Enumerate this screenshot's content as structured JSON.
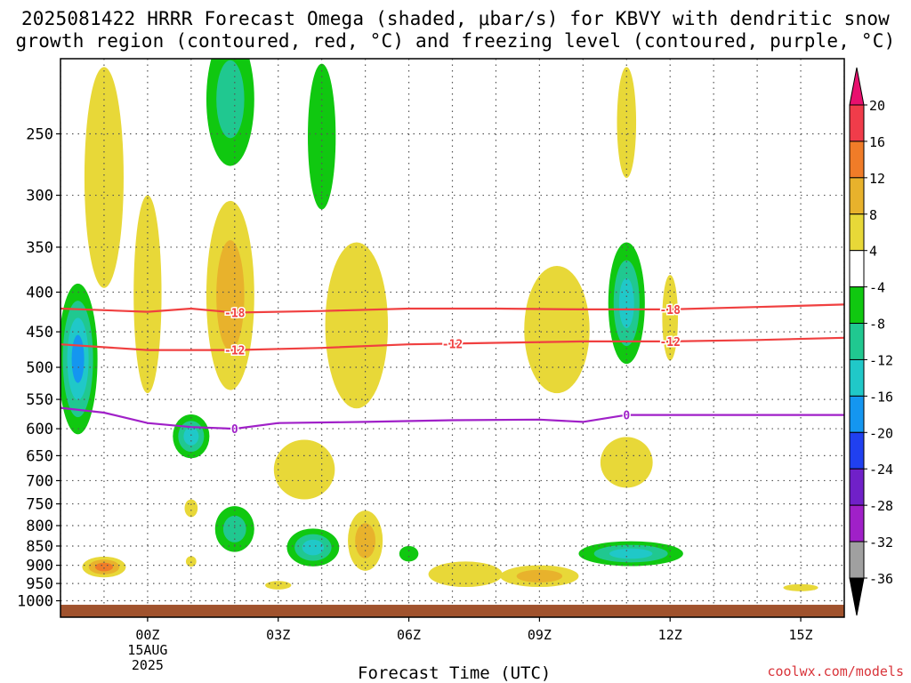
{
  "title_line1": "2025081422 HRRR Forecast Omega (shaded, μbar/s) for KBVY with dendritic snow",
  "title_line2": "growth region (contoured, red, °C) and freezing level (contoured, purple, °C)",
  "credit": "coolwx.com/models",
  "chart_data": {
    "type": "contour-time-height",
    "xlabel": "Forecast Time (UTC)",
    "ylabel": "",
    "x_range_hours": [
      -2.0,
      16.0
    ],
    "y_range_hpa": [
      200,
      1050
    ],
    "y_scale": "log-pressure",
    "grid": true,
    "x_ticks": [
      {
        "hour": 0,
        "label": "00Z",
        "sub1": "15AUG",
        "sub2": "2025"
      },
      {
        "hour": 3,
        "label": "03Z"
      },
      {
        "hour": 6,
        "label": "06Z"
      },
      {
        "hour": 9,
        "label": "09Z"
      },
      {
        "hour": 12,
        "label": "12Z"
      },
      {
        "hour": 15,
        "label": "15Z"
      }
    ],
    "y_ticks": [
      250,
      300,
      350,
      400,
      450,
      500,
      550,
      600,
      650,
      700,
      750,
      800,
      850,
      900,
      950,
      1000
    ],
    "colorbar": {
      "labels": [
        "20",
        "16",
        "12",
        "8",
        "4",
        "-4",
        "-8",
        "-12",
        "-16",
        "-20",
        "-24",
        "-28",
        "-32",
        "-36"
      ],
      "colors": [
        "#f03c4a",
        "#f07c28",
        "#e8b22c",
        "#e8d838",
        "#ffffff",
        "#10c810",
        "#20c890",
        "#20c8c8",
        "#1496f0",
        "#2040f0",
        "#7020c8",
        "#a020c8",
        "#a0a0a0"
      ],
      "top_arrow_color": "#e8106e",
      "bottom_arrow_color": "#000000"
    },
    "shaded_regions": [
      {
        "center": [
          -1.6,
          500
        ],
        "half": [
          0.45,
          110
        ],
        "levels": [
          "#10c810",
          "#20c890",
          "#20c8c8",
          "#1496f0"
        ]
      },
      {
        "center": [
          -1.0,
          300
        ],
        "half": [
          0.45,
          95
        ],
        "levels": [
          "#e8d838"
        ]
      },
      {
        "center": [
          0.0,
          420
        ],
        "half": [
          0.32,
          120
        ],
        "levels": [
          "#e8d838"
        ]
      },
      {
        "center": [
          -1.0,
          905
        ],
        "half": [
          0.5,
          28
        ],
        "levels": [
          "#e8d838",
          "#e8b22c",
          "#f07c28"
        ]
      },
      {
        "center": [
          1.0,
          615
        ],
        "half": [
          0.42,
          40
        ],
        "levels": [
          "#10c810",
          "#20c890",
          "#20c8c8"
        ]
      },
      {
        "center": [
          1.0,
          760
        ],
        "half": [
          0.15,
          20
        ],
        "levels": [
          "#e8d838"
        ]
      },
      {
        "center": [
          1.0,
          890
        ],
        "half": [
          0.12,
          14
        ],
        "levels": [
          "#e8d838"
        ]
      },
      {
        "center": [
          1.9,
          230
        ],
        "half": [
          0.55,
          45
        ],
        "levels": [
          "#10c810",
          "#20c890"
        ]
      },
      {
        "center": [
          1.9,
          420
        ],
        "half": [
          0.55,
          115
        ],
        "levels": [
          "#e8d838",
          "#e8b22c"
        ]
      },
      {
        "center": [
          2.0,
          810
        ],
        "half": [
          0.45,
          55
        ],
        "levels": [
          "#10c810",
          "#20c890"
        ]
      },
      {
        "center": [
          4.0,
          258
        ],
        "half": [
          0.32,
          55
        ],
        "levels": [
          "#10c810"
        ]
      },
      {
        "center": [
          3.6,
          680
        ],
        "half": [
          0.7,
          60
        ],
        "levels": [
          "#e8d838"
        ]
      },
      {
        "center": [
          3.0,
          955
        ],
        "half": [
          0.3,
          12
        ],
        "levels": [
          "#e8d838"
        ]
      },
      {
        "center": [
          3.8,
          855
        ],
        "half": [
          0.6,
          48
        ],
        "levels": [
          "#10c810",
          "#20c890",
          "#20c8c8"
        ]
      },
      {
        "center": [
          4.8,
          455
        ],
        "half": [
          0.72,
          110
        ],
        "levels": [
          "#e8d838"
        ]
      },
      {
        "center": [
          5.0,
          840
        ],
        "half": [
          0.4,
          75
        ],
        "levels": [
          "#e8d838",
          "#e8b22c"
        ]
      },
      {
        "center": [
          6.0,
          870
        ],
        "half": [
          0.22,
          20
        ],
        "levels": [
          "#10c810"
        ]
      },
      {
        "center": [
          7.3,
          925
        ],
        "half": [
          0.85,
          35
        ],
        "levels": [
          "#e8d838"
        ]
      },
      {
        "center": [
          9.4,
          455
        ],
        "half": [
          0.75,
          85
        ],
        "levels": [
          "#e8d838"
        ]
      },
      {
        "center": [
          9.0,
          930
        ],
        "half": [
          0.9,
          30
        ],
        "levels": [
          "#e8d838",
          "#e8b22c"
        ]
      },
      {
        "center": [
          11.0,
          245
        ],
        "half": [
          0.22,
          40
        ],
        "levels": [
          "#e8d838"
        ]
      },
      {
        "center": [
          11.0,
          420
        ],
        "half": [
          0.42,
          75
        ],
        "levels": [
          "#10c810",
          "#20c890",
          "#20c8c8"
        ]
      },
      {
        "center": [
          11.0,
          665
        ],
        "half": [
          0.6,
          50
        ],
        "levels": [
          "#e8d838"
        ]
      },
      {
        "center": [
          11.1,
          870
        ],
        "half": [
          1.2,
          32
        ],
        "levels": [
          "#10c810",
          "#20c890",
          "#20c8c8"
        ]
      },
      {
        "center": [
          12.0,
          435
        ],
        "half": [
          0.18,
          55
        ],
        "levels": [
          "#e8d838"
        ]
      },
      {
        "center": [
          15.0,
          962
        ],
        "half": [
          0.4,
          8
        ],
        "levels": [
          "#e8d838"
        ]
      }
    ],
    "contours": [
      {
        "name": "dgz-minus18",
        "label": "-18",
        "color": "#f04040",
        "points": [
          [
            -2.0,
            420
          ],
          [
            0.0,
            424
          ],
          [
            1.0,
            420
          ],
          [
            2.0,
            425
          ],
          [
            4.0,
            423
          ],
          [
            6.0,
            420
          ],
          [
            8.0,
            420
          ],
          [
            10.0,
            421
          ],
          [
            12.0,
            421
          ],
          [
            14.0,
            418
          ],
          [
            16.0,
            415
          ]
        ],
        "label_hours": [
          2.0,
          12.0
        ]
      },
      {
        "name": "dgz-minus12",
        "label": "-12",
        "color": "#f04040",
        "points": [
          [
            -2.0,
            467
          ],
          [
            0.0,
            475
          ],
          [
            2.0,
            475
          ],
          [
            4.0,
            472
          ],
          [
            6.0,
            467
          ],
          [
            8.0,
            465
          ],
          [
            10.0,
            463
          ],
          [
            12.0,
            463
          ],
          [
            14.0,
            461
          ],
          [
            16.0,
            458
          ]
        ],
        "label_hours": [
          2.0,
          7.0,
          12.0
        ]
      },
      {
        "name": "freezing-level",
        "label": "0",
        "color": "#a020c8",
        "points": [
          [
            -2.0,
            564
          ],
          [
            -1.0,
            572
          ],
          [
            0.0,
            590
          ],
          [
            1.0,
            597
          ],
          [
            2.0,
            600
          ],
          [
            3.0,
            590
          ],
          [
            5.0,
            588
          ],
          [
            7.0,
            585
          ],
          [
            9.0,
            584
          ],
          [
            10.0,
            588
          ],
          [
            11.0,
            576
          ],
          [
            13.0,
            576
          ],
          [
            16.0,
            576
          ]
        ],
        "label_hours": [
          2.0,
          11.0
        ]
      }
    ],
    "terrain": {
      "top_hpa": 1012,
      "color": "#a0522d"
    }
  }
}
